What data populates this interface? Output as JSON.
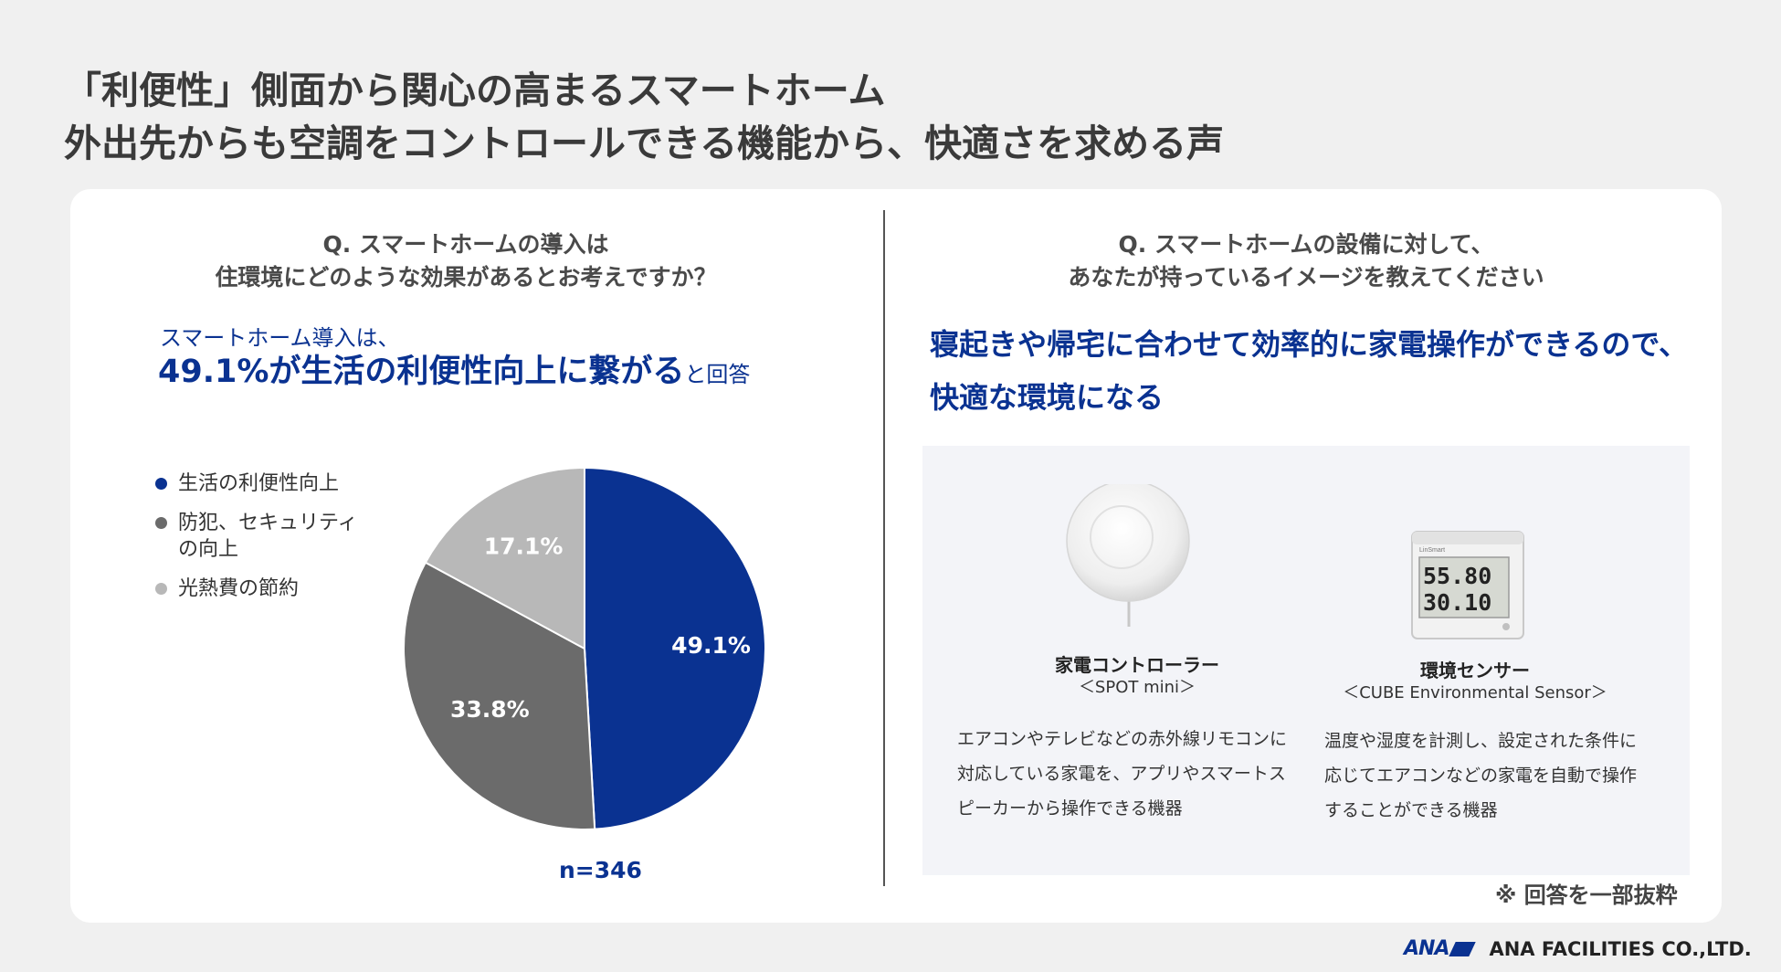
{
  "title": {
    "line1": "「利便性」側面から関心の高まるスマートホーム",
    "line2": "外出先からも空調をコントロールできる機能から、快適さを求める声"
  },
  "left": {
    "question_line1": "Q. スマートホームの導入は",
    "question_line2": "住環境にどのような効果があるとお考えですか？",
    "lead_small": "スマートホーム導入は、",
    "lead_big": "49.1%が生活の利便性向上に繋がる",
    "lead_tail": "と回答",
    "n_label": "n=346"
  },
  "chart_data": {
    "type": "pie",
    "slices": [
      {
        "label": "生活の利便性向上",
        "value": 49.1,
        "value_label": "49.1%",
        "color": "#0a3291"
      },
      {
        "label": "防犯、セキュリティの向上",
        "value": 33.8,
        "value_label": "33.8%",
        "color": "#6b6b6b"
      },
      {
        "label": "光熱費の節約",
        "value": 17.1,
        "value_label": "17.1%",
        "color": "#b8b8b8"
      }
    ],
    "legend": [
      {
        "text": "生活の利便性向上",
        "color": "#0a3291"
      },
      {
        "text": "防犯、セキュリティ\nの向上",
        "color": "#6b6b6b"
      },
      {
        "text": "光熱費の節約",
        "color": "#b8b8b8"
      }
    ],
    "legend_position": "left"
  },
  "right": {
    "question_line1": "Q. スマートホームの設備に対して、",
    "question_line2": "あなたが持っているイメージを教えてください",
    "lead_line1": "寝起きや帰宅に合わせて効率的に家電操作ができるので、",
    "lead_line2": "快適な環境になる",
    "products": [
      {
        "name": "家電コントローラー",
        "sub": "＜SPOT mini＞",
        "desc": [
          "エアコンやテレビなどの赤外線リモコンに",
          "対応している家電を、アプリやスマートス",
          "ピーカーから操作できる機器"
        ]
      },
      {
        "name": "環境センサー",
        "sub": "＜CUBE Environmental Sensor＞",
        "desc": [
          "温度や湿度を計測し、設定された条件に",
          "応じてエアコンなどの家電を自動で操作",
          "することができる機器"
        ],
        "display": {
          "brand": "LinSmart",
          "line1": "55.80",
          "line2": "30.10"
        }
      }
    ],
    "note": "※ 回答を一部抜粋"
  },
  "footer": {
    "ana": "ANA",
    "company": "ANA FACILITIES CO.,LTD."
  },
  "colors": {
    "accent": "#0a3291",
    "background": "#f0f0f0",
    "card": "#ffffff"
  }
}
